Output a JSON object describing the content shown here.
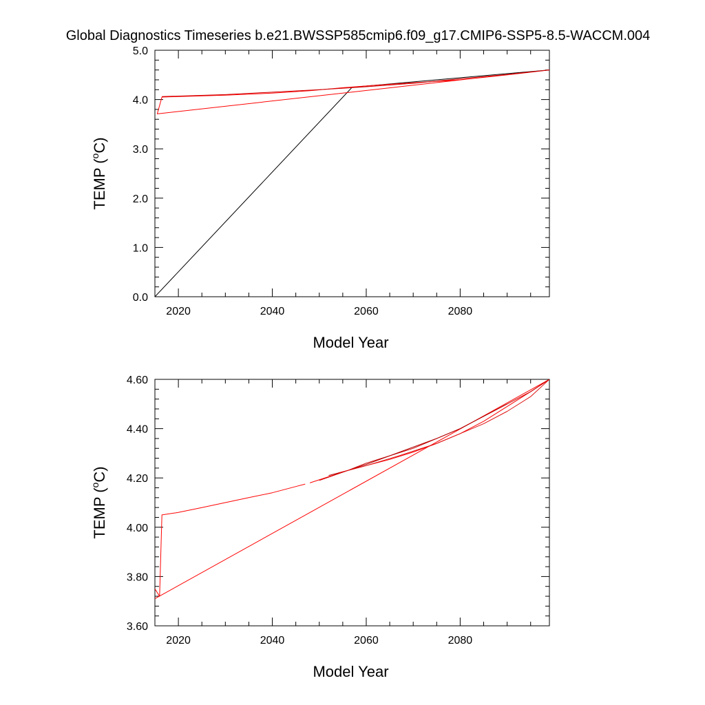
{
  "figure": {
    "title": "Global Diagnostics Timeseries b.e21.BWSSP585cmip6.f09_g17.CMIP6-SSP5-8.5-WACCM.004"
  },
  "chart_data": [
    {
      "type": "line",
      "xlabel": "Model Year",
      "ylabel_text": "TEMP (",
      "ylabel_sup": "o",
      "ylabel_unit": "C)",
      "xlim": [
        2015,
        2099
      ],
      "ylim": [
        0.0,
        5.0
      ],
      "xticks": [
        2020,
        2040,
        2060,
        2080
      ],
      "xtick_labels": [
        "2020",
        "2040",
        "2060",
        "2080"
      ],
      "yticks": [
        0.0,
        1.0,
        2.0,
        3.0,
        4.0,
        5.0
      ],
      "ytick_labels": [
        "0.0",
        "1.0",
        "2.0",
        "3.0",
        "4.0",
        "5.0"
      ],
      "grid": false,
      "series": [
        {
          "color": "#000000",
          "x": [
            2015,
            2057,
            2099
          ],
          "y": [
            0.0,
            4.25,
            4.6
          ]
        },
        {
          "color": "#ff0000",
          "x": [
            2099,
            2015.5,
            2016.5,
            2020,
            2030,
            2040,
            2048,
            2055,
            2065,
            2080,
            2090,
            2099
          ],
          "y": [
            4.6,
            3.71,
            4.05,
            4.06,
            4.09,
            4.13,
            4.18,
            4.24,
            4.31,
            4.4,
            4.5,
            4.6
          ]
        },
        {
          "color": "#cc0000",
          "x": [
            2016.5,
            2030,
            2050,
            2060,
            2070,
            2080,
            2090,
            2099
          ],
          "y": [
            4.06,
            4.1,
            4.2,
            4.26,
            4.33,
            4.42,
            4.51,
            4.6
          ]
        }
      ]
    },
    {
      "type": "line",
      "xlabel": "Model Year",
      "ylabel_text": "TEMP (",
      "ylabel_sup": "o",
      "ylabel_unit": "C)",
      "xlim": [
        2015,
        2099
      ],
      "ylim": [
        3.6,
        4.6
      ],
      "xticks": [
        2020,
        2040,
        2060,
        2080
      ],
      "xtick_labels": [
        "2020",
        "2040",
        "2060",
        "2080"
      ],
      "yticks": [
        3.6,
        3.8,
        4.0,
        4.2,
        4.4,
        4.6
      ],
      "ytick_labels": [
        "3.60",
        "3.80",
        "4.00",
        "4.20",
        "4.40",
        "4.60"
      ],
      "grid": false,
      "series": [
        {
          "color": "#ff0000",
          "x": [
            2015,
            2099
          ],
          "y": [
            3.71,
            4.6
          ]
        },
        {
          "color": "#ff0000",
          "x": [
            2015,
            2016,
            2016.5,
            2020,
            2025,
            2030,
            2035,
            2040,
            2045,
            2047
          ],
          "y": [
            3.75,
            3.72,
            4.05,
            4.06,
            4.08,
            4.1,
            4.12,
            4.14,
            4.165,
            4.175
          ]
        },
        {
          "color": "#ff0000",
          "x": [
            2048,
            2052,
            2056,
            2060,
            2065,
            2070,
            2075,
            2080,
            2085,
            2090,
            2095,
            2099
          ],
          "y": [
            4.18,
            4.205,
            4.23,
            4.25,
            4.275,
            4.305,
            4.34,
            4.38,
            4.43,
            4.49,
            4.55,
            4.6
          ]
        },
        {
          "color": "#cc0000",
          "x": [
            2050,
            2056,
            2060,
            2065,
            2070,
            2075,
            2080,
            2085,
            2090,
            2095,
            2099
          ],
          "y": [
            4.19,
            4.23,
            4.26,
            4.29,
            4.32,
            4.36,
            4.4,
            4.45,
            4.5,
            4.55,
            4.6
          ]
        },
        {
          "color": "#b00000",
          "x": [
            2052,
            2056,
            2060,
            2065,
            2070,
            2075,
            2080,
            2085,
            2090
          ],
          "y": [
            4.21,
            4.23,
            4.255,
            4.29,
            4.325,
            4.36,
            4.4,
            4.45,
            4.5
          ]
        },
        {
          "color": "#dd1111",
          "x": [
            2054,
            2060,
            2067,
            2075,
            2080,
            2085,
            2090,
            2095,
            2099
          ],
          "y": [
            4.22,
            4.25,
            4.29,
            4.34,
            4.38,
            4.42,
            4.47,
            4.53,
            4.6
          ]
        }
      ]
    }
  ]
}
